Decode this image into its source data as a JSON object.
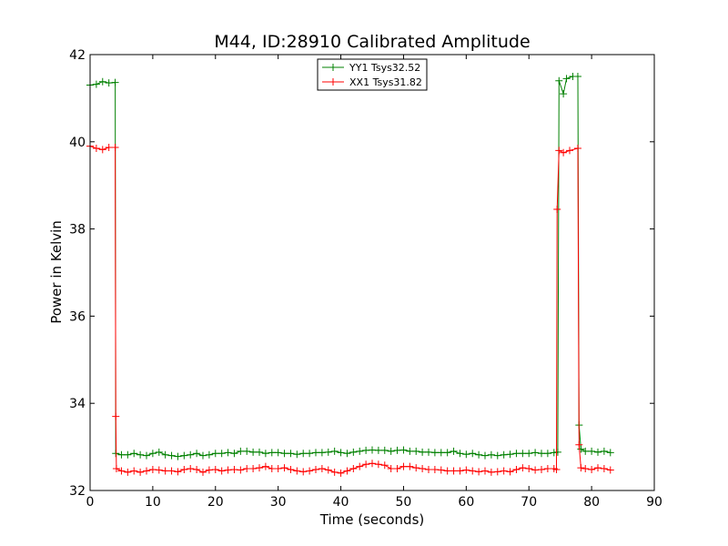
{
  "chart_data": {
    "type": "line",
    "title": "M44, ID:28910 Calibrated Amplitude",
    "xlabel": "Time (seconds)",
    "ylabel": "Power in Kelvin",
    "xlim": [
      0,
      90
    ],
    "ylim": [
      32,
      42
    ],
    "xticks": [
      "0",
      "10",
      "20",
      "30",
      "40",
      "50",
      "60",
      "70",
      "80",
      "90"
    ],
    "yticks": [
      "32",
      "34",
      "36",
      "38",
      "40",
      "42"
    ],
    "grid": false,
    "legend_position": "top-center",
    "marker": "+",
    "series": [
      {
        "name": "YY1 Tsys32.52",
        "color": "#008000",
        "points": [
          [
            0,
            41.3
          ],
          [
            1,
            41.32
          ],
          [
            2,
            41.38
          ],
          [
            3,
            41.35
          ],
          [
            4,
            41.36
          ],
          [
            4.1,
            32.85
          ],
          [
            5,
            32.82
          ],
          [
            6,
            32.82
          ],
          [
            7,
            32.85
          ],
          [
            8,
            32.82
          ],
          [
            9,
            32.8
          ],
          [
            10,
            32.85
          ],
          [
            11,
            32.88
          ],
          [
            12,
            32.82
          ],
          [
            13,
            32.8
          ],
          [
            14,
            32.78
          ],
          [
            15,
            32.8
          ],
          [
            16,
            32.82
          ],
          [
            17,
            32.85
          ],
          [
            18,
            32.8
          ],
          [
            19,
            32.82
          ],
          [
            20,
            32.85
          ],
          [
            21,
            32.85
          ],
          [
            22,
            32.87
          ],
          [
            23,
            32.85
          ],
          [
            24,
            32.9
          ],
          [
            25,
            32.9
          ],
          [
            26,
            32.88
          ],
          [
            27,
            32.88
          ],
          [
            28,
            32.85
          ],
          [
            29,
            32.87
          ],
          [
            30,
            32.87
          ],
          [
            31,
            32.85
          ],
          [
            32,
            32.85
          ],
          [
            33,
            32.83
          ],
          [
            34,
            32.85
          ],
          [
            35,
            32.85
          ],
          [
            36,
            32.87
          ],
          [
            37,
            32.87
          ],
          [
            38,
            32.88
          ],
          [
            39,
            32.9
          ],
          [
            40,
            32.87
          ],
          [
            41,
            32.85
          ],
          [
            42,
            32.88
          ],
          [
            43,
            32.9
          ],
          [
            44,
            32.92
          ],
          [
            45,
            32.93
          ],
          [
            46,
            32.92
          ],
          [
            47,
            32.92
          ],
          [
            48,
            32.9
          ],
          [
            49,
            32.92
          ],
          [
            50,
            32.93
          ],
          [
            51,
            32.9
          ],
          [
            52,
            32.9
          ],
          [
            53,
            32.88
          ],
          [
            54,
            32.88
          ],
          [
            55,
            32.87
          ],
          [
            56,
            32.87
          ],
          [
            57,
            32.87
          ],
          [
            58,
            32.9
          ],
          [
            59,
            32.85
          ],
          [
            60,
            32.83
          ],
          [
            61,
            32.85
          ],
          [
            62,
            32.82
          ],
          [
            63,
            32.8
          ],
          [
            64,
            32.82
          ],
          [
            65,
            32.8
          ],
          [
            66,
            32.82
          ],
          [
            67,
            32.83
          ],
          [
            68,
            32.85
          ],
          [
            69,
            32.85
          ],
          [
            70,
            32.85
          ],
          [
            71,
            32.87
          ],
          [
            72,
            32.85
          ],
          [
            73,
            32.85
          ],
          [
            74,
            32.87
          ],
          [
            74.6,
            32.88
          ],
          [
            74.8,
            41.4
          ],
          [
            75.5,
            41.1
          ],
          [
            76,
            41.45
          ],
          [
            77,
            41.5
          ],
          [
            77.8,
            41.5
          ],
          [
            78,
            33.5
          ],
          [
            78.3,
            32.95
          ],
          [
            79,
            32.9
          ],
          [
            80,
            32.9
          ],
          [
            81,
            32.88
          ],
          [
            82,
            32.9
          ],
          [
            83,
            32.87
          ]
        ]
      },
      {
        "name": "XX1 Tsys31.82",
        "color": "#ff0000",
        "points": [
          [
            0,
            39.9
          ],
          [
            1,
            39.85
          ],
          [
            2,
            39.82
          ],
          [
            3,
            39.87
          ],
          [
            4,
            39.87
          ],
          [
            4.1,
            33.7
          ],
          [
            4.2,
            32.5
          ],
          [
            5,
            32.45
          ],
          [
            6,
            32.42
          ],
          [
            7,
            32.45
          ],
          [
            8,
            32.42
          ],
          [
            9,
            32.45
          ],
          [
            10,
            32.48
          ],
          [
            11,
            32.47
          ],
          [
            12,
            32.45
          ],
          [
            13,
            32.45
          ],
          [
            14,
            32.43
          ],
          [
            15,
            32.48
          ],
          [
            16,
            32.5
          ],
          [
            17,
            32.48
          ],
          [
            18,
            32.42
          ],
          [
            19,
            32.47
          ],
          [
            20,
            32.48
          ],
          [
            21,
            32.45
          ],
          [
            22,
            32.47
          ],
          [
            23,
            32.48
          ],
          [
            24,
            32.47
          ],
          [
            25,
            32.5
          ],
          [
            26,
            32.5
          ],
          [
            27,
            32.52
          ],
          [
            28,
            32.55
          ],
          [
            29,
            32.5
          ],
          [
            30,
            32.5
          ],
          [
            31,
            32.52
          ],
          [
            32,
            32.48
          ],
          [
            33,
            32.45
          ],
          [
            34,
            32.43
          ],
          [
            35,
            32.45
          ],
          [
            36,
            32.48
          ],
          [
            37,
            32.5
          ],
          [
            38,
            32.47
          ],
          [
            39,
            32.42
          ],
          [
            40,
            32.4
          ],
          [
            41,
            32.45
          ],
          [
            42,
            32.5
          ],
          [
            43,
            32.55
          ],
          [
            44,
            32.6
          ],
          [
            45,
            32.62
          ],
          [
            46,
            32.6
          ],
          [
            47,
            32.58
          ],
          [
            48,
            32.5
          ],
          [
            49,
            32.5
          ],
          [
            50,
            32.55
          ],
          [
            51,
            32.55
          ],
          [
            52,
            32.52
          ],
          [
            53,
            32.5
          ],
          [
            54,
            32.48
          ],
          [
            55,
            32.48
          ],
          [
            56,
            32.47
          ],
          [
            57,
            32.45
          ],
          [
            58,
            32.45
          ],
          [
            59,
            32.45
          ],
          [
            60,
            32.47
          ],
          [
            61,
            32.45
          ],
          [
            62,
            32.43
          ],
          [
            63,
            32.45
          ],
          [
            64,
            32.42
          ],
          [
            65,
            32.43
          ],
          [
            66,
            32.45
          ],
          [
            67,
            32.43
          ],
          [
            68,
            32.48
          ],
          [
            69,
            32.52
          ],
          [
            70,
            32.5
          ],
          [
            71,
            32.47
          ],
          [
            72,
            32.48
          ],
          [
            73,
            32.5
          ],
          [
            74,
            32.5
          ],
          [
            74.4,
            32.48
          ],
          [
            74.5,
            38.45
          ],
          [
            74.8,
            39.8
          ],
          [
            75.5,
            39.75
          ],
          [
            76.5,
            39.8
          ],
          [
            77.8,
            39.85
          ],
          [
            78,
            33.05
          ],
          [
            78.3,
            32.52
          ],
          [
            79,
            32.5
          ],
          [
            80,
            32.48
          ],
          [
            81,
            32.52
          ],
          [
            82,
            32.5
          ],
          [
            83,
            32.47
          ]
        ]
      }
    ]
  }
}
